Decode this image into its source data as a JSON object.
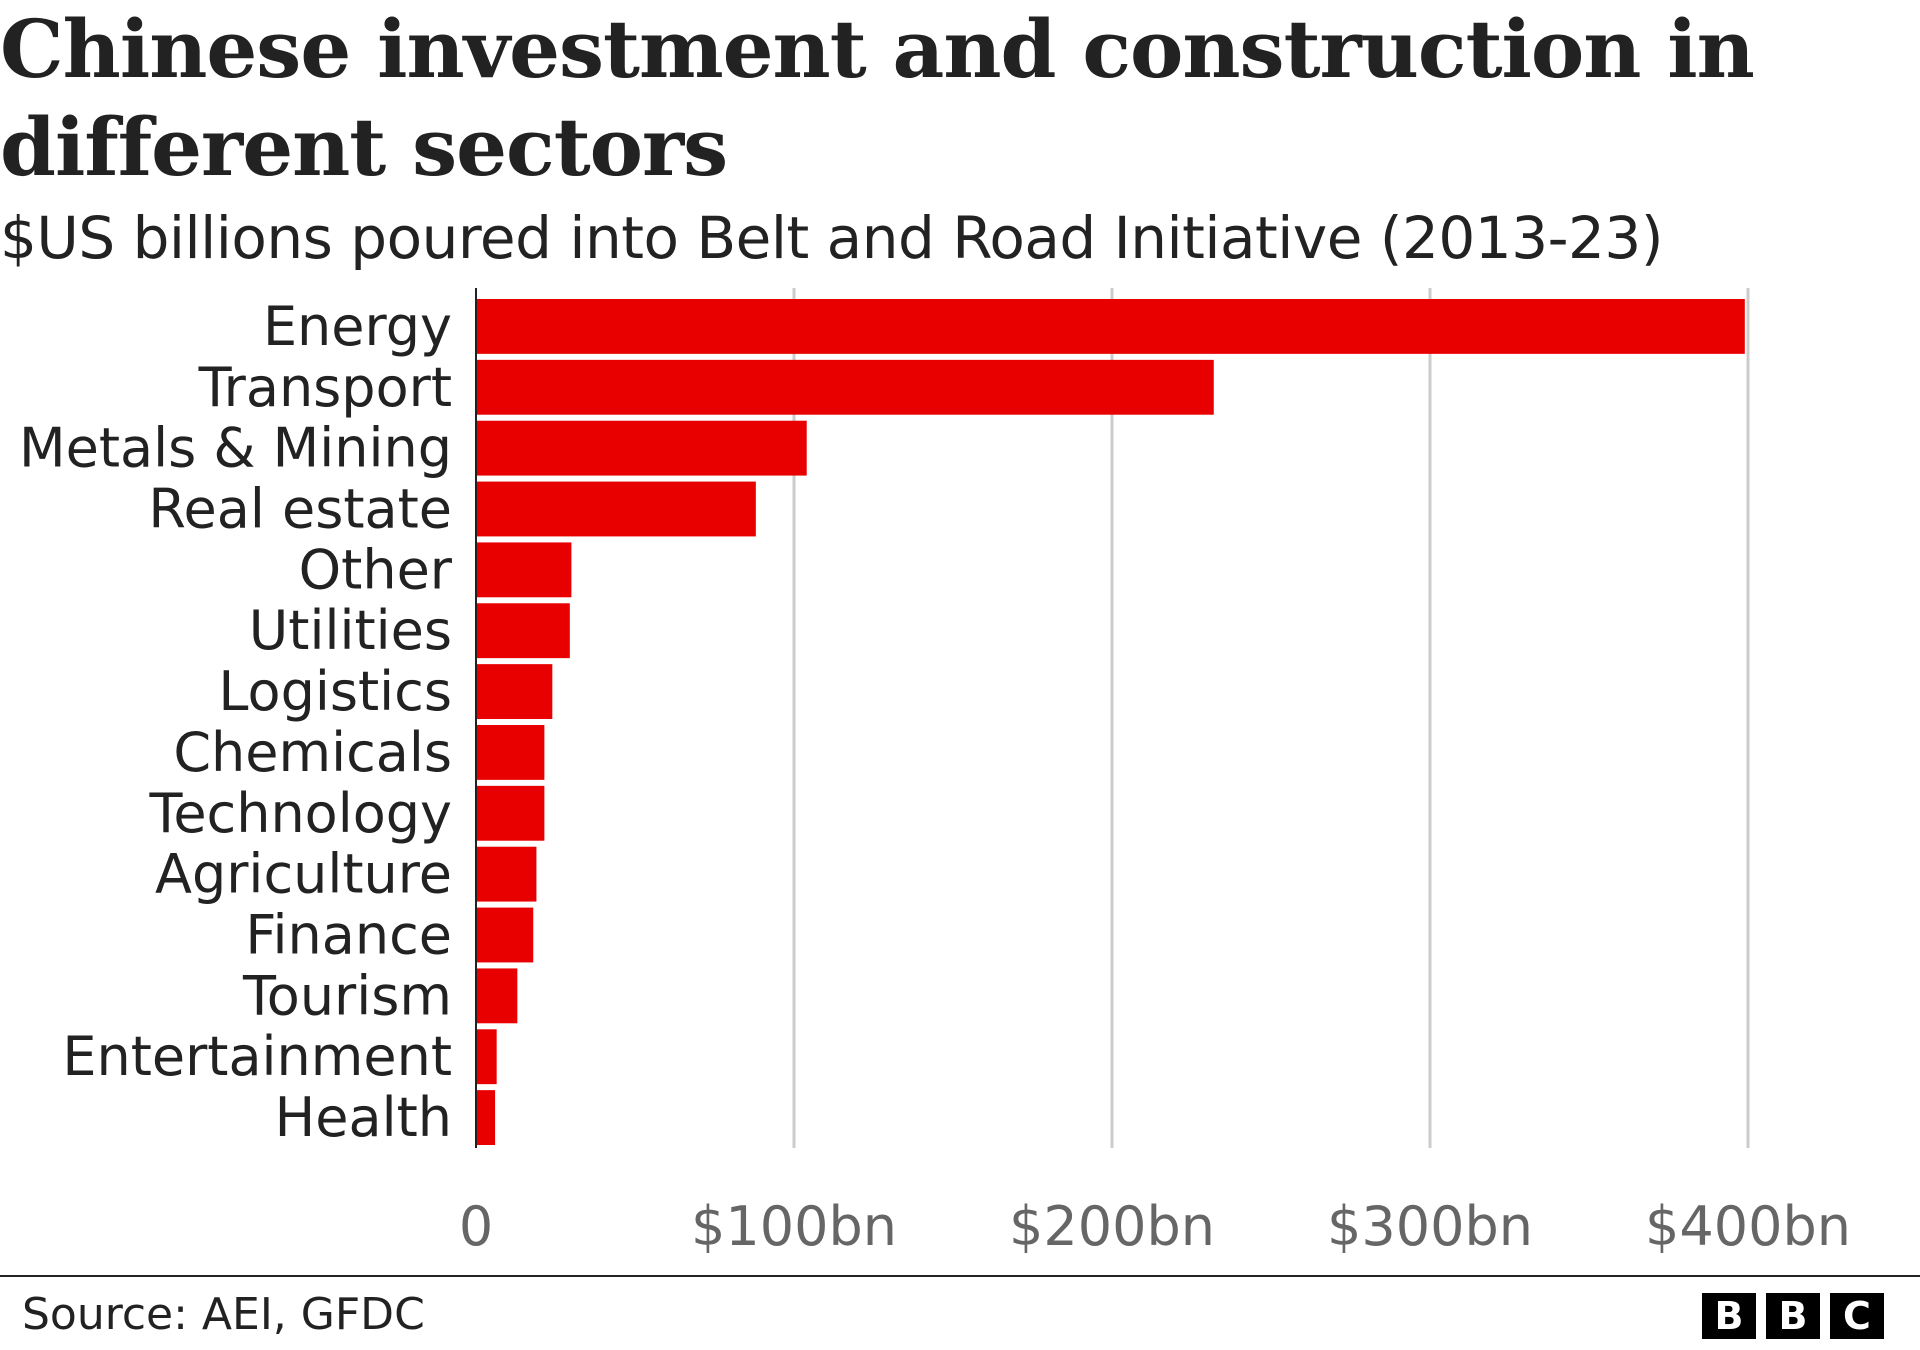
{
  "header": {
    "title": "Chinese investment and construction in different sectors",
    "subtitle": "$US billions poured into Belt and Road Initiative (2013-23)"
  },
  "chart_data": {
    "type": "bar",
    "orientation": "horizontal",
    "title": "Chinese investment and construction in different sectors",
    "subtitle": "$US billions poured into Belt and Road Initiative (2013-23)",
    "xlabel": "",
    "ylabel": "",
    "categories": [
      "Energy",
      "Transport",
      "Metals & Mining",
      "Real estate",
      "Other",
      "Utilities",
      "Logistics",
      "Chemicals",
      "Technology",
      "Agriculture",
      "Finance",
      "Tourism",
      "Entertainment",
      "Health"
    ],
    "values": [
      399,
      232,
      104,
      88,
      30,
      29.5,
      24,
      21.5,
      21.5,
      19,
      18,
      13,
      6.5,
      6
    ],
    "xlim": [
      0,
      400
    ],
    "x_ticks": [
      0,
      100,
      200,
      300,
      400
    ],
    "x_tick_labels": [
      "0",
      "$100bn",
      "$200bn",
      "$300bn",
      "$400bn"
    ],
    "grid": true,
    "legend": "none",
    "colors": {
      "bar": "#e80000",
      "grid": "#cccccc",
      "axis": "#222222",
      "tick_label": "#666666",
      "category_label": "#222222"
    }
  },
  "footer": {
    "source": "Source: AEI, GFDC",
    "logo_letters": [
      "B",
      "B",
      "C"
    ]
  }
}
